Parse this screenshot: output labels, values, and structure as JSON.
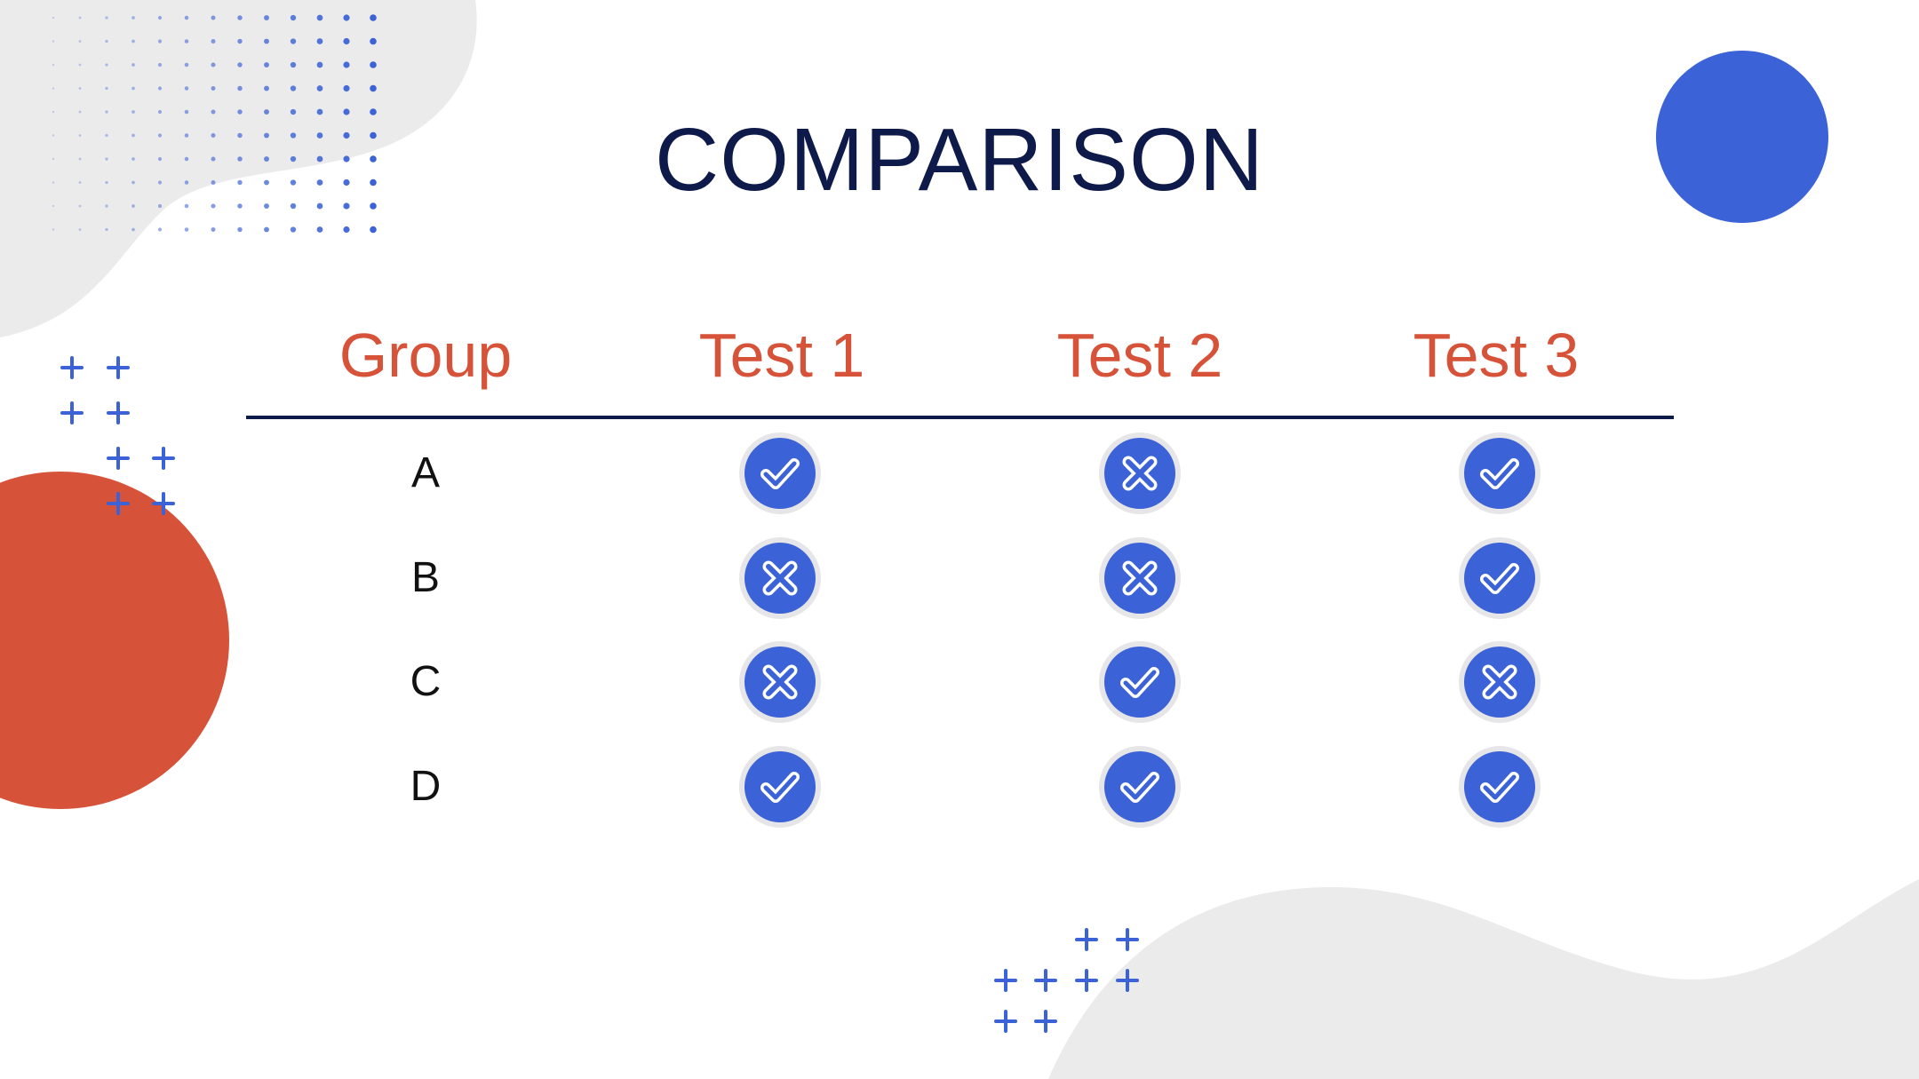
{
  "colors": {
    "accent_blue": "#3b62d6",
    "accent_red": "#d65239",
    "navy": "#0e1a4a",
    "blob_gray": "#ebebeb",
    "icon_ring": "#e6e6e9"
  },
  "slide": {
    "title": "COMPARISON"
  },
  "table": {
    "headers": [
      "Group",
      "Test 1",
      "Test 2",
      "Test 3"
    ],
    "rows": [
      {
        "group": "A",
        "results": [
          "check-icon",
          "cross-icon",
          "check-icon"
        ]
      },
      {
        "group": "B",
        "results": [
          "cross-icon",
          "cross-icon",
          "check-icon"
        ]
      },
      {
        "group": "C",
        "results": [
          "cross-icon",
          "check-icon",
          "cross-icon"
        ]
      },
      {
        "group": "D",
        "results": [
          "check-icon",
          "check-icon",
          "check-icon"
        ]
      }
    ]
  }
}
